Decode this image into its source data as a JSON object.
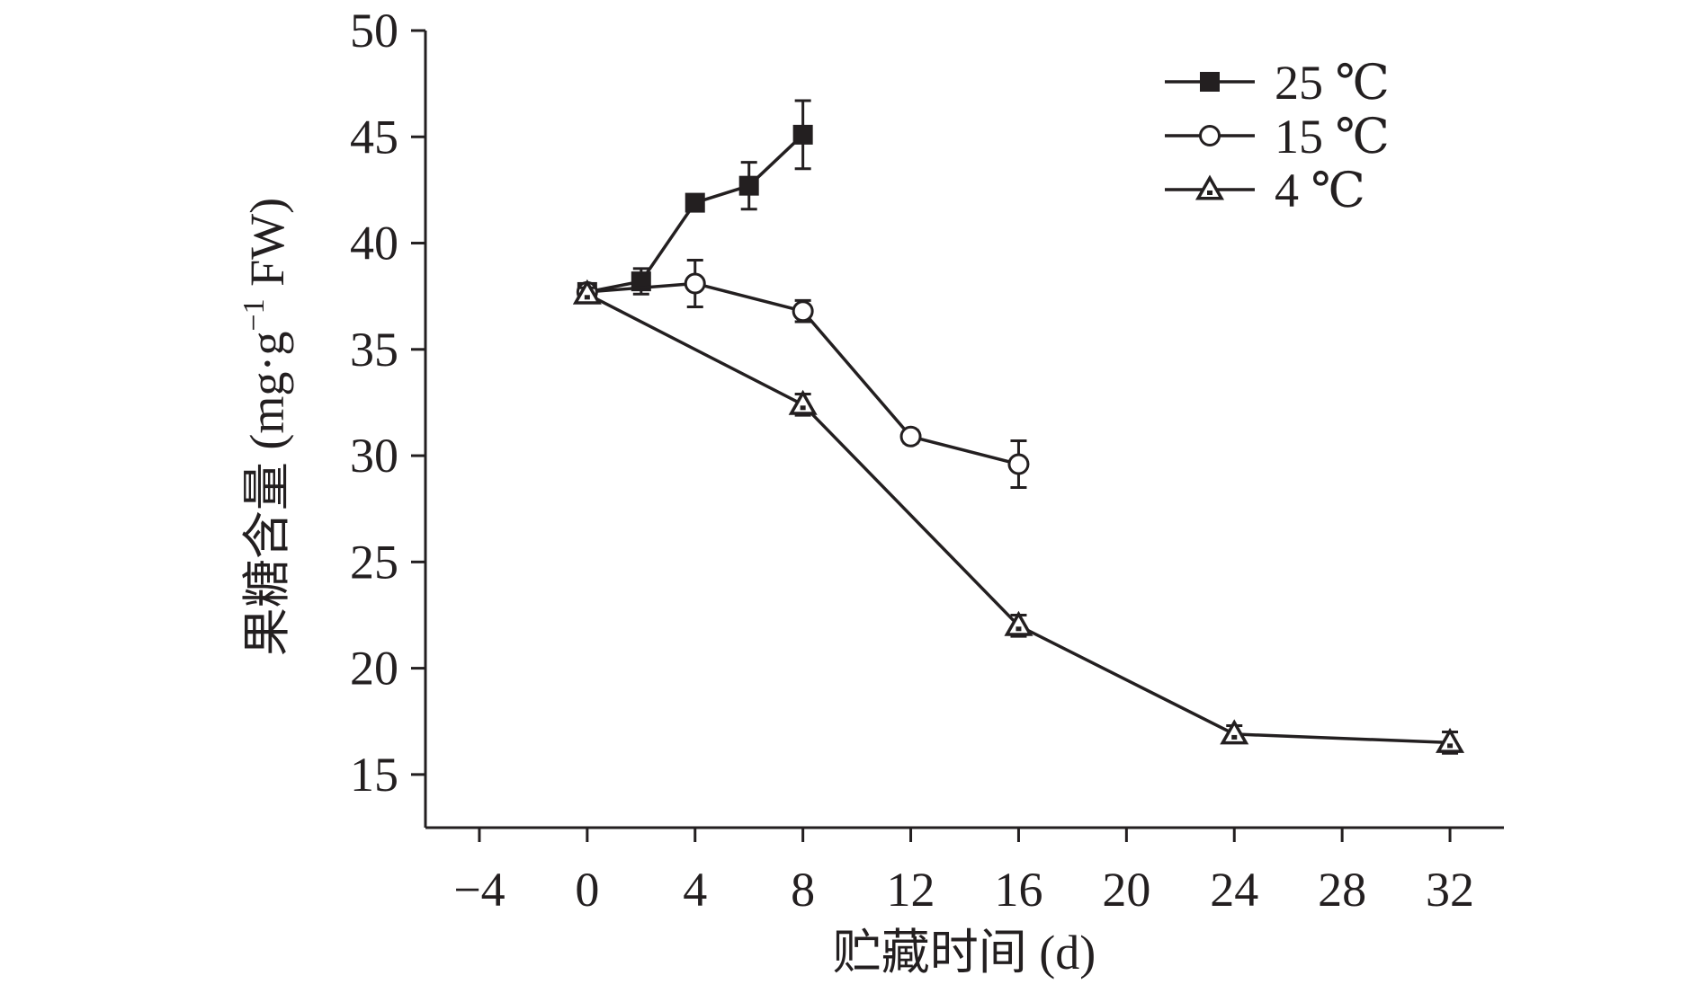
{
  "chart_data": {
    "type": "line",
    "title": "",
    "xlabel": "贮藏时间 (d)",
    "ylabel": "果糖含量 (mg·g−1 FW)",
    "ylabel_parts": {
      "main": "果糖含量 (mg·g",
      "sup": "−1",
      "tail": " FW)"
    },
    "xlim": [
      -6,
      34
    ],
    "ylim": [
      12.5,
      50
    ],
    "x_ticks": [
      -4,
      0,
      4,
      8,
      12,
      16,
      20,
      24,
      28,
      32
    ],
    "x_tick_labels": [
      "−4",
      "0",
      "4",
      "8",
      "12",
      "16",
      "20",
      "24",
      "28",
      "32"
    ],
    "y_ticks": [
      15,
      20,
      25,
      30,
      35,
      40,
      45,
      50
    ],
    "y_tick_labels": [
      "15",
      "20",
      "25",
      "30",
      "35",
      "40",
      "45",
      "50"
    ],
    "grid": false,
    "legend_position": "top-right",
    "series": [
      {
        "name": "25 ℃",
        "marker": "filled-square",
        "x": [
          0,
          2,
          4,
          6,
          8
        ],
        "y": [
          37.7,
          38.2,
          41.9,
          42.7,
          45.1
        ],
        "err": [
          0.4,
          0.6,
          0.3,
          1.1,
          1.6
        ]
      },
      {
        "name": "15 ℃",
        "marker": "open-circle",
        "x": [
          0,
          4,
          8,
          12,
          16
        ],
        "y": [
          37.7,
          38.1,
          36.8,
          30.9,
          29.6
        ],
        "err": [
          0.4,
          1.1,
          0.5,
          0.3,
          1.1
        ]
      },
      {
        "name": "4 ℃",
        "marker": "triangle",
        "x": [
          0,
          8,
          16,
          24,
          32
        ],
        "y": [
          37.6,
          32.4,
          22.0,
          16.9,
          16.5
        ],
        "err": [
          0.3,
          0.5,
          0.5,
          0.4,
          0.5
        ]
      }
    ],
    "colors": {
      "line": "#231f20",
      "background": "#ffffff"
    }
  }
}
